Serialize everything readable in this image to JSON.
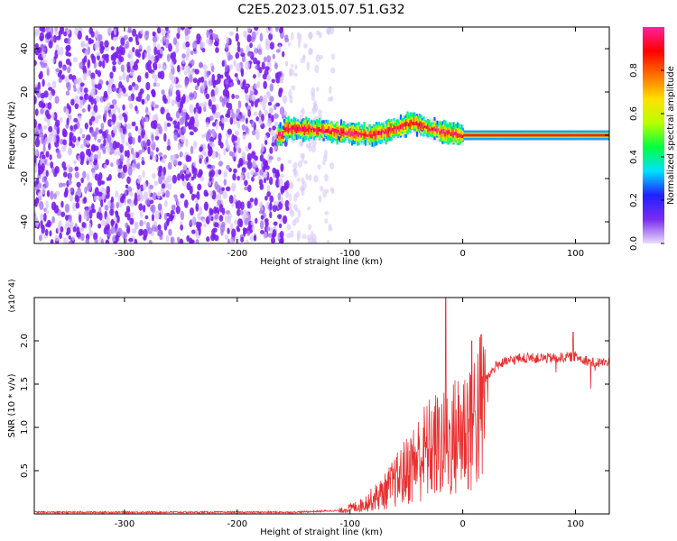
{
  "title": "C2E5.2023.015.07.51.G32",
  "chart_data": [
    {
      "type": "heatmap",
      "xlabel": "Height of straight line (km)",
      "ylabel": "Frequency (Hz)",
      "xlim": [
        -380,
        130
      ],
      "ylim": [
        -50,
        50
      ],
      "x_ticks": [
        -300,
        -200,
        -100,
        0,
        100
      ],
      "y_ticks": [
        -40,
        -20,
        0,
        20,
        40
      ],
      "grid": false,
      "colorbar": {
        "label": "Normalized spectral amplitude",
        "range": [
          0.0,
          1.0
        ],
        "ticks": [
          0.0,
          0.2,
          0.4,
          0.6,
          0.8
        ],
        "colors": [
          "#e8dcf8",
          "#7a2cf0",
          "#2020ff",
          "#00e0ff",
          "#00ff40",
          "#b8ff00",
          "#ffe000",
          "#ff7000",
          "#ff0000",
          "#ff20a0"
        ]
      },
      "noise_band": {
        "x_start": -380,
        "x_end": -115,
        "level": 0.25
      },
      "ridge": [
        {
          "x": -160,
          "f": 3
        },
        {
          "x": -140,
          "f": 3
        },
        {
          "x": -120,
          "f": 2
        },
        {
          "x": -100,
          "f": 1
        },
        {
          "x": -80,
          "f": 0
        },
        {
          "x": -60,
          "f": 3
        },
        {
          "x": -45,
          "f": 6
        },
        {
          "x": -30,
          "f": 3
        },
        {
          "x": -15,
          "f": 1
        },
        {
          "x": 0,
          "f": 0
        },
        {
          "x": 130,
          "f": 0
        }
      ]
    },
    {
      "type": "line",
      "xlabel": "Height of straight line (km)",
      "ylabel": "SNR (10 * v/v)",
      "scale_label": "(x10^4)",
      "xlim": [
        -380,
        130
      ],
      "ylim": [
        0,
        2.5
      ],
      "x_ticks": [
        -300,
        -200,
        -100,
        0,
        100
      ],
      "y_ticks": [
        0.5,
        1.0,
        1.5,
        2.0
      ],
      "y_tick_labels": [
        "0.5",
        "1.0",
        "1.5",
        "2.0"
      ],
      "series": [
        {
          "color": "#e83030",
          "envelope_x": [
            -380,
            -150,
            -110,
            -90,
            -70,
            -50,
            -35,
            -25,
            -15,
            -5,
            10,
            20,
            30,
            50,
            80,
            100,
            115,
            130
          ],
          "envelope_y": [
            0.02,
            0.02,
            0.04,
            0.12,
            0.3,
            0.6,
            0.85,
            0.95,
            0.95,
            1.1,
            1.35,
            1.55,
            1.72,
            1.8,
            1.8,
            1.82,
            1.75,
            1.75
          ],
          "spikes": [
            {
              "x": -15,
              "y": 2.5
            },
            {
              "x": 8,
              "y": 2.0
            },
            {
              "x": 98,
              "y": 2.1
            }
          ]
        }
      ]
    }
  ]
}
